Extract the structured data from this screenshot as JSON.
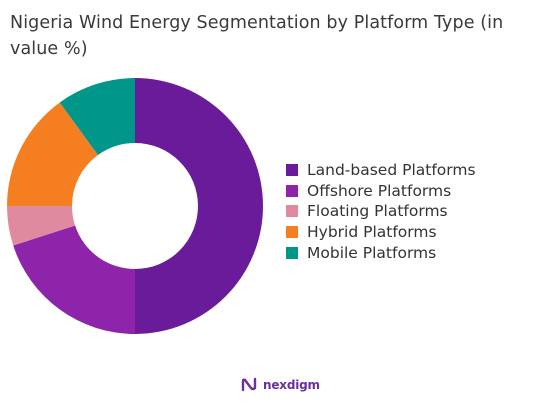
{
  "chart_data": {
    "type": "pie",
    "title": "Nigeria Wind Energy Segmentation by Platform Type (in value %)",
    "donut": true,
    "legend_position": "right",
    "categories": [
      "Land-based Platforms",
      "Offshore Platforms",
      "Floating Platforms",
      "Hybrid Platforms",
      "Mobile Platforms"
    ],
    "values": [
      50,
      20,
      5,
      15,
      10
    ],
    "colors": [
      "#6a1b9a",
      "#8e24aa",
      "#e08aa0",
      "#f57f20",
      "#00968a"
    ]
  },
  "branding": {
    "logo_text": "nexdigm",
    "logo_color": "#6b2fa0"
  }
}
